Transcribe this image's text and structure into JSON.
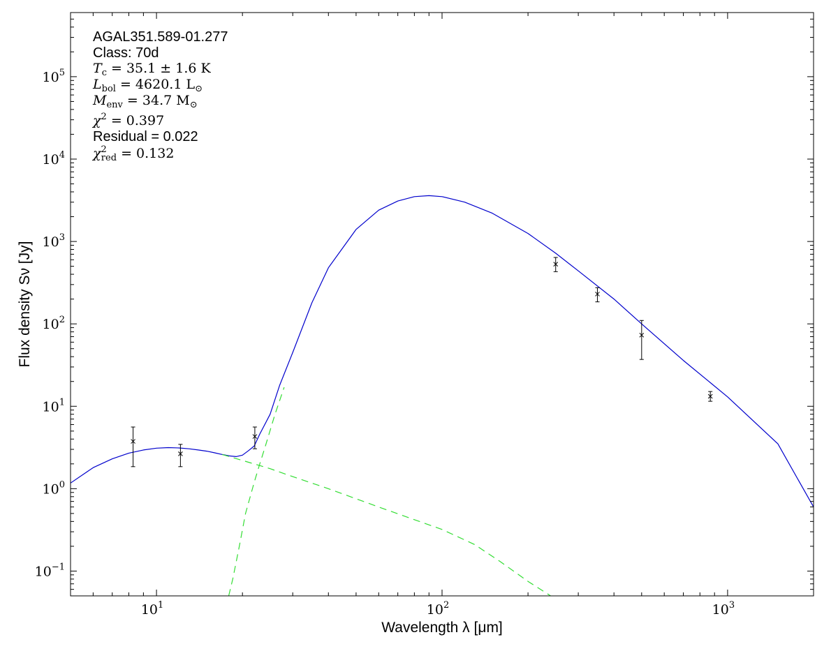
{
  "chart_data": {
    "type": "scatter",
    "title": "",
    "xlabel": "Wavelength λ [μm]",
    "ylabel": "Flux density Sν [Jy]",
    "xscale": "log",
    "yscale": "log",
    "xlim": [
      5,
      2000
    ],
    "ylim": [
      0.05,
      600000
    ],
    "grid": false,
    "x_ticks": [
      {
        "base": "10",
        "exp": "1",
        "value": 10
      },
      {
        "base": "10",
        "exp": "2",
        "value": 100
      },
      {
        "base": "10",
        "exp": "3",
        "value": 1000
      }
    ],
    "y_ticks": [
      {
        "base": "10",
        "exp": "−1",
        "value": 0.1
      },
      {
        "base": "10",
        "exp": "0",
        "value": 1
      },
      {
        "base": "10",
        "exp": "1",
        "value": 10
      },
      {
        "base": "10",
        "exp": "2",
        "value": 100
      },
      {
        "base": "10",
        "exp": "3",
        "value": 1000
      },
      {
        "base": "10",
        "exp": "4",
        "value": 10000
      },
      {
        "base": "10",
        "exp": "5",
        "value": 100000
      }
    ],
    "observations": {
      "marker": "x",
      "color": "#000000",
      "points": [
        {
          "x": 8.28,
          "y": 3.75,
          "ylo": 1.85,
          "yhi": 5.6
        },
        {
          "x": 12.13,
          "y": 2.65,
          "ylo": 1.85,
          "yhi": 3.45
        },
        {
          "x": 22.1,
          "y": 4.3,
          "ylo": 3.05,
          "yhi": 5.6
        },
        {
          "x": 250,
          "y": 530,
          "ylo": 430,
          "yhi": 640
        },
        {
          "x": 350,
          "y": 230,
          "ylo": 185,
          "yhi": 275
        },
        {
          "x": 500,
          "y": 73,
          "ylo": 37,
          "yhi": 110
        },
        {
          "x": 870,
          "y": 13.2,
          "ylo": 11.5,
          "yhi": 15.1
        }
      ]
    },
    "model_curves": [
      {
        "style": "solid",
        "color": "#0000cc",
        "points": [
          [
            5,
            1.17
          ],
          [
            6,
            1.8
          ],
          [
            7,
            2.3
          ],
          [
            8,
            2.7
          ],
          [
            9,
            2.95
          ],
          [
            10,
            3.1
          ],
          [
            11,
            3.15
          ],
          [
            12,
            3.12
          ],
          [
            13,
            3.05
          ],
          [
            14,
            2.95
          ],
          [
            15,
            2.85
          ],
          [
            16,
            2.72
          ],
          [
            17,
            2.6
          ],
          [
            18,
            2.5
          ],
          [
            19,
            2.45
          ],
          [
            20,
            2.55
          ],
          [
            21,
            2.9
          ],
          [
            22,
            3.3
          ],
          [
            23,
            4.6
          ],
          [
            25,
            8
          ],
          [
            27,
            18
          ],
          [
            30,
            45
          ],
          [
            35,
            180
          ],
          [
            40,
            480
          ],
          [
            50,
            1400
          ],
          [
            60,
            2400
          ],
          [
            70,
            3100
          ],
          [
            80,
            3500
          ],
          [
            90,
            3600
          ],
          [
            100,
            3500
          ],
          [
            120,
            3000
          ],
          [
            150,
            2200
          ],
          [
            200,
            1250
          ],
          [
            250,
            720
          ],
          [
            300,
            440
          ],
          [
            400,
            200
          ],
          [
            500,
            100
          ],
          [
            700,
            36
          ],
          [
            1000,
            13
          ],
          [
            1500,
            3.5
          ],
          [
            2000,
            0.6
          ]
        ]
      },
      {
        "style": "dashed",
        "color": "#33dd33",
        "points": [
          [
            17.9,
            0.05
          ],
          [
            18.5,
            0.08
          ],
          [
            19.5,
            0.2
          ],
          [
            20.5,
            0.5
          ],
          [
            22,
            1.2
          ],
          [
            23,
            2.0
          ],
          [
            24,
            3.2
          ],
          [
            26,
            8.0
          ],
          [
            28,
            17
          ]
        ]
      },
      {
        "style": "dashed",
        "color": "#33dd33",
        "points": [
          [
            17,
            2.6
          ],
          [
            20,
            2.2
          ],
          [
            25,
            1.75
          ],
          [
            30,
            1.4
          ],
          [
            40,
            1.0
          ],
          [
            60,
            0.6
          ],
          [
            80,
            0.42
          ],
          [
            100,
            0.32
          ],
          [
            130,
            0.21
          ],
          [
            160,
            0.13
          ],
          [
            200,
            0.075
          ],
          [
            240,
            0.05
          ]
        ]
      }
    ]
  },
  "annotations": {
    "source_name": "AGAL351.589-01.277",
    "class_label": "Class: 70d",
    "tc": {
      "var": "T",
      "sub": "c",
      "value": " = 35.1 ± 1.6 K"
    },
    "lbol": {
      "var": "L",
      "sub": "bol",
      "value": " = 4620.1 L",
      "unit_sub": "⊙"
    },
    "menv": {
      "var": "M",
      "sub": "env",
      "value": " = 34.7 M",
      "unit_sub": "⊙"
    },
    "chi2": {
      "var": "χ",
      "sup": "2",
      "value": " = 0.397"
    },
    "residual": "Residual = 0.022",
    "chi2red": {
      "var": "χ",
      "sup": "2",
      "sub": "red",
      "value": " = 0.132"
    }
  }
}
